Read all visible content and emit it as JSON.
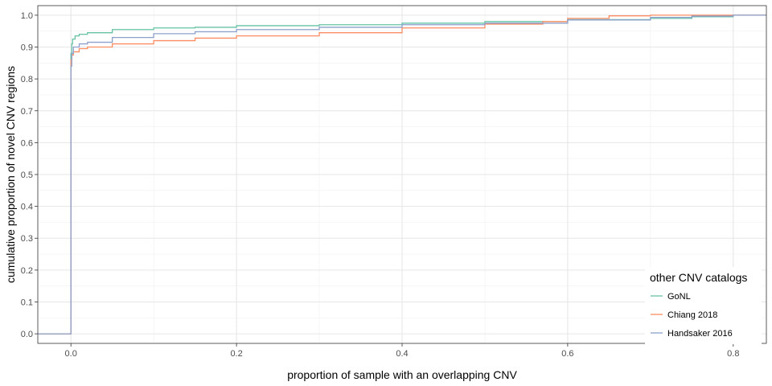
{
  "chart_data": {
    "type": "line",
    "step": true,
    "xlabel": "proportion of sample with an overlapping CNV",
    "ylabel": "cumulative proportion of novel CNV regions",
    "xlim": [
      -0.04,
      0.84
    ],
    "ylim": [
      -0.03,
      1.03
    ],
    "x_ticks": [
      0.0,
      0.2,
      0.4,
      0.6,
      0.8
    ],
    "x_tick_labels": [
      "0.0",
      "0.2",
      "0.4",
      "0.6",
      "0.8"
    ],
    "y_ticks": [
      0.0,
      0.1,
      0.2,
      0.3,
      0.4,
      0.5,
      0.6,
      0.7,
      0.8,
      0.9,
      1.0
    ],
    "y_tick_labels": [
      "0.0",
      "0.1",
      "0.2",
      "0.3",
      "0.4",
      "0.5",
      "0.6",
      "0.7",
      "0.8",
      "0.9",
      "1.0"
    ],
    "grid": true,
    "legend": {
      "title": "other CNV catalogs",
      "position": "bottom-right"
    },
    "series": [
      {
        "name": "GoNL",
        "color": "#66c2a5",
        "points": [
          [
            -0.04,
            0.0
          ],
          [
            0.0,
            0.0
          ],
          [
            0.0,
            0.88
          ],
          [
            0.001,
            0.91
          ],
          [
            0.002,
            0.925
          ],
          [
            0.005,
            0.935
          ],
          [
            0.01,
            0.94
          ],
          [
            0.02,
            0.945
          ],
          [
            0.05,
            0.955
          ],
          [
            0.1,
            0.96
          ],
          [
            0.15,
            0.962
          ],
          [
            0.2,
            0.967
          ],
          [
            0.3,
            0.97
          ],
          [
            0.4,
            0.975
          ],
          [
            0.5,
            0.98
          ],
          [
            0.6,
            0.986
          ],
          [
            0.7,
            0.99
          ],
          [
            0.75,
            0.995
          ],
          [
            0.8,
            1.0
          ],
          [
            0.84,
            1.0
          ]
        ]
      },
      {
        "name": "Chiang 2018",
        "color": "#fc8d62",
        "points": [
          [
            -0.04,
            0.0
          ],
          [
            0.0,
            0.0
          ],
          [
            0.0,
            0.86
          ],
          [
            0.001,
            0.875
          ],
          [
            0.003,
            0.885
          ],
          [
            0.01,
            0.895
          ],
          [
            0.02,
            0.9
          ],
          [
            0.05,
            0.91
          ],
          [
            0.1,
            0.92
          ],
          [
            0.15,
            0.928
          ],
          [
            0.2,
            0.935
          ],
          [
            0.3,
            0.945
          ],
          [
            0.4,
            0.96
          ],
          [
            0.5,
            0.972
          ],
          [
            0.57,
            0.98
          ],
          [
            0.6,
            0.99
          ],
          [
            0.65,
            0.998
          ],
          [
            0.7,
            1.0
          ],
          [
            0.84,
            1.0
          ]
        ]
      },
      {
        "name": "Handsaker 2016",
        "color": "#8da0cb",
        "points": [
          [
            -0.04,
            0.0
          ],
          [
            0.0,
            0.0
          ],
          [
            0.0,
            0.84
          ],
          [
            0.001,
            0.88
          ],
          [
            0.003,
            0.9
          ],
          [
            0.01,
            0.91
          ],
          [
            0.02,
            0.915
          ],
          [
            0.05,
            0.93
          ],
          [
            0.1,
            0.942
          ],
          [
            0.15,
            0.948
          ],
          [
            0.2,
            0.955
          ],
          [
            0.3,
            0.962
          ],
          [
            0.4,
            0.97
          ],
          [
            0.5,
            0.975
          ],
          [
            0.6,
            0.985
          ],
          [
            0.7,
            0.993
          ],
          [
            0.75,
            0.997
          ],
          [
            0.8,
            1.0
          ],
          [
            0.84,
            1.0
          ]
        ]
      }
    ]
  }
}
